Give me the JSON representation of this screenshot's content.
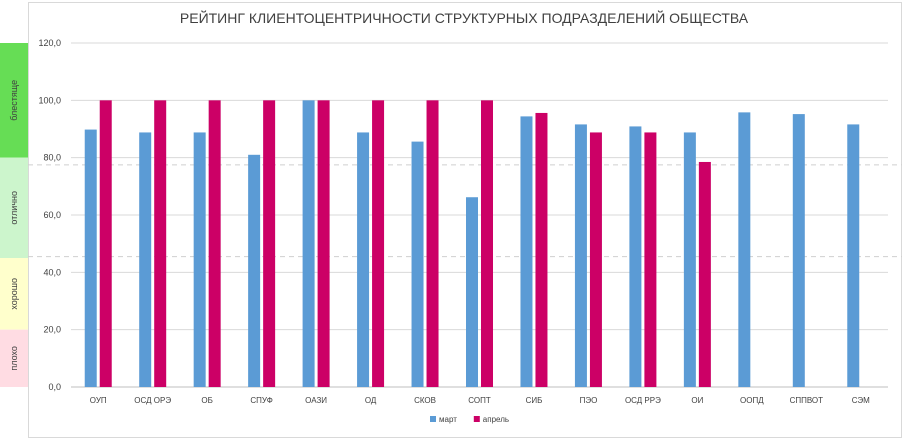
{
  "chart_data": {
    "type": "bar",
    "title": "РЕЙТИНГ КЛИЕНТОЦЕНТРИЧНОСТИ СТРУКТУРНЫХ ПОДРАЗДЕЛЕНИЙ ОБЩЕСТВА",
    "xlabel": "",
    "ylabel": "",
    "ylim": [
      0,
      120
    ],
    "yticks": [
      "0,0",
      "20,0",
      "40,0",
      "60,0",
      "80,0",
      "100,0",
      "120,0"
    ],
    "ytick_values": [
      0,
      20,
      40,
      60,
      80,
      100,
      120
    ],
    "grid": true,
    "legend_position": "bottom",
    "categories": [
      "ОУП",
      "ОСД ОРЭ",
      "ОБ",
      "СПУФ",
      "ОАЗИ",
      "ОД",
      "СКОВ",
      "СОПТ",
      "СИБ",
      "ПЭО",
      "ОСД РРЭ",
      "ОИ",
      "ООПД",
      "СППВОТ",
      "СЭМ"
    ],
    "series": [
      {
        "name": "март",
        "color": "#5b9bd5",
        "values": [
          89.8,
          88.8,
          88.8,
          81.0,
          100.0,
          88.8,
          85.6,
          66.2,
          94.4,
          91.6,
          90.9,
          88.8,
          95.8,
          95.2,
          91.6
        ]
      },
      {
        "name": "апрель",
        "color": "#cc0066",
        "values": [
          100.0,
          100.0,
          100.0,
          100.0,
          100.0,
          100.0,
          100.0,
          100.0,
          95.6,
          88.8,
          88.8,
          78.5,
          null,
          null,
          null
        ]
      }
    ],
    "reference_lines": [
      77.5,
      45.5
    ],
    "bands": [
      {
        "label": "блестяще",
        "from": 80,
        "to": 120,
        "color": "#66dd55"
      },
      {
        "label": "отлично",
        "from": 45,
        "to": 80,
        "color": "#ccf5cc"
      },
      {
        "label": "хорошо",
        "from": 20,
        "to": 45,
        "color": "#ffffcc"
      },
      {
        "label": "плохо",
        "from": 0,
        "to": 20,
        "color": "#ffdce3"
      }
    ]
  }
}
